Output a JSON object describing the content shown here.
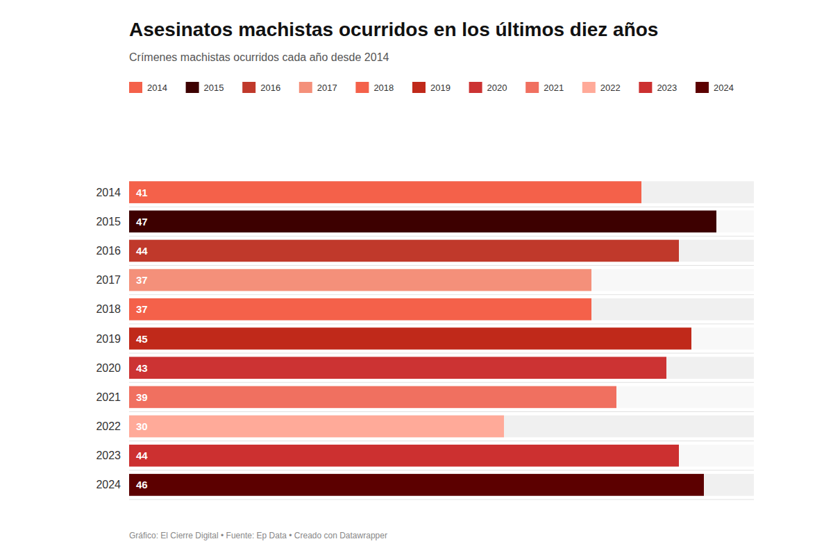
{
  "chart_data": {
    "type": "bar",
    "orientation": "horizontal",
    "title": "Asesinatos machistas ocurridos en los últimos diez años",
    "subtitle": "Crímenes machistas ocurridos cada año desde 2014",
    "annotations": [
      "Gráfico: El Cierre Digital • Fuente: Ep Data • Creado con Datawrapper"
    ],
    "categories": [
      "2014",
      "2015",
      "2016",
      "2017",
      "2018",
      "2019",
      "2020",
      "2021",
      "2022",
      "2023",
      "2024"
    ],
    "values": [
      41,
      47,
      44,
      37,
      37,
      45,
      43,
      39,
      30,
      44,
      46
    ],
    "colors": [
      "#F4614A",
      "#3D0000",
      "#C0392B",
      "#F4907A",
      "#F4614A",
      "#C0291A",
      "#CC3333",
      "#F07060",
      "#FFAA99",
      "#CC3030",
      "#5C0000"
    ],
    "xlim": [
      0,
      50
    ],
    "data_labels": true,
    "legend": "top",
    "tick_labels": "y",
    "grid": false
  }
}
